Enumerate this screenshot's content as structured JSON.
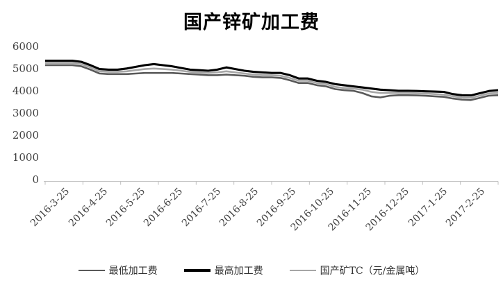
{
  "chart_data": {
    "type": "line",
    "title": "国产锌矿加工费",
    "xlabel": "",
    "ylabel": "",
    "ylim": [
      0,
      6000
    ],
    "y_ticks": [
      0,
      1000,
      2000,
      3000,
      4000,
      5000,
      6000
    ],
    "grid": false,
    "legend_position": "bottom",
    "x_tick_labels": [
      "2016-3-25",
      "2016-4-25",
      "2016-5-25",
      "2016-6-25",
      "2016-7-25",
      "2016-8-25",
      "2016-9-25",
      "2016-10-25",
      "2016-11-25",
      "2016-12-25",
      "2017-1-25",
      "2017-2-25"
    ],
    "x_unit": "weekly points from 2016-3-25",
    "series": [
      {
        "name": "最低加工费",
        "color": "#595959",
        "width": 2.6,
        "values": [
          5150,
          5150,
          5150,
          5150,
          5100,
          4950,
          4775,
          4750,
          4750,
          4750,
          4775,
          4800,
          4800,
          4800,
          4800,
          4775,
          4750,
          4725,
          4700,
          4700,
          4725,
          4700,
          4675,
          4625,
          4600,
          4600,
          4575,
          4475,
          4350,
          4350,
          4250,
          4200,
          4075,
          4025,
          4000,
          3900,
          3750,
          3700,
          3775,
          3800,
          3800,
          3790,
          3775,
          3750,
          3725,
          3650,
          3600,
          3580,
          3680,
          3780,
          3800
        ]
      },
      {
        "name": "最高加工费",
        "color": "#000000",
        "width": 3.1,
        "values": [
          5350,
          5350,
          5350,
          5350,
          5300,
          5150,
          4975,
          4950,
          4950,
          5000,
          5075,
          5150,
          5200,
          5150,
          5100,
          5025,
          4950,
          4925,
          4900,
          4950,
          5050,
          4975,
          4900,
          4850,
          4825,
          4800,
          4800,
          4700,
          4550,
          4550,
          4450,
          4400,
          4300,
          4250,
          4200,
          4150,
          4100,
          4050,
          4025,
          4000,
          4000,
          3990,
          3975,
          3960,
          3950,
          3850,
          3800,
          3790,
          3890,
          3990,
          4025
        ]
      },
      {
        "name": "国产矿TC（元/金属吨）",
        "color": "#a6a6a6",
        "width": 2.6,
        "values": [
          5250,
          5250,
          5250,
          5250,
          5200,
          5050,
          4875,
          4850,
          4850,
          4875,
          4925,
          4975,
          5000,
          4975,
          4950,
          4900,
          4850,
          4825,
          4800,
          4825,
          4875,
          4825,
          4775,
          4725,
          4700,
          4700,
          4675,
          4575,
          4450,
          4450,
          4350,
          4300,
          4175,
          4125,
          4100,
          4050,
          3950,
          3900,
          3900,
          3900,
          3900,
          3890,
          3875,
          3850,
          3825,
          3750,
          3700,
          3680,
          3780,
          3880,
          3900
        ]
      }
    ],
    "axis_color": "#bfbfbf",
    "tick_text_color": "#3f3f3f"
  }
}
